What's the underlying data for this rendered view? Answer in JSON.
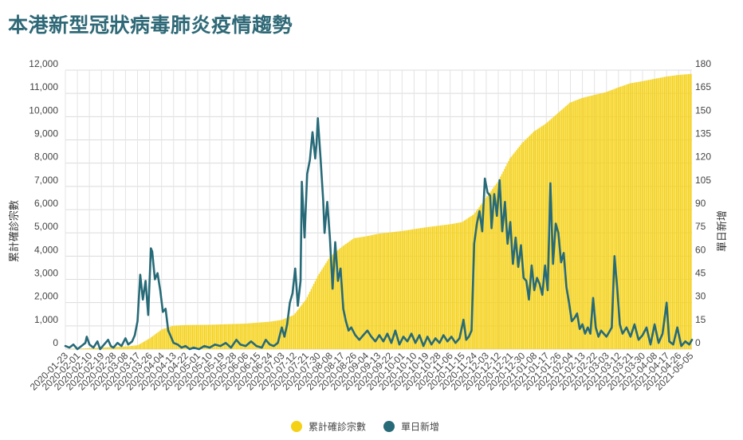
{
  "title": "本港新型冠狀病毒肺炎疫情趨勢",
  "chart_data": {
    "type": "bar+line",
    "title": "本港新型冠狀病毒肺炎疫情趨勢",
    "ylabel_left": "累計確診宗數",
    "ylabel_right": "單日新增",
    "ylim_left": [
      0,
      12000
    ],
    "ylim_right": [
      0,
      180
    ],
    "yticks_left": [
      "0",
      "1,000",
      "2,000",
      "3,000",
      "4,000",
      "5,000",
      "6,000",
      "7,000",
      "8,000",
      "9,000",
      "10,000",
      "11,000",
      "12,000"
    ],
    "yticks_right": [
      "0",
      "15",
      "30",
      "45",
      "60",
      "75",
      "90",
      "105",
      "120",
      "135",
      "150",
      "165",
      "180"
    ],
    "x_start": "2020-01-23",
    "x_end": "2021-05-06",
    "xticks": [
      "2020-01-23",
      "2020-02-01",
      "2020-02-10",
      "2020-02-19",
      "2020-02-28",
      "2020-03-08",
      "2020-03-17",
      "2020-03-26",
      "2020-04-04",
      "2020-04-13",
      "2020-04-22",
      "2020-05-01",
      "2020-05-10",
      "2020-05-19",
      "2020-05-28",
      "2020-06-06",
      "2020-06-15",
      "2020-06-24",
      "2020-07-03",
      "2020-07-12",
      "2020-07-21",
      "2020-07-30",
      "2020-08-08",
      "2020-08-17",
      "2020-08-26",
      "2020-09-04",
      "2020-09-13",
      "2020-09-22",
      "2020-10-01",
      "2020-10-10",
      "2020-10-19",
      "2020-10-28",
      "2020-11-06",
      "2020-11-15",
      "2020-11-24",
      "2020-12-03",
      "2020-12-12",
      "2020-12-21",
      "2020-12-30",
      "2021-01-08",
      "2021-01-17",
      "2021-01-26",
      "2021-02-04",
      "2021-02-13",
      "2021-02-22",
      "2021-03-03",
      "2021-03-12",
      "2021-03-21",
      "2021-03-30",
      "2021-04-08",
      "2021-04-17",
      "2021-04-26",
      "2021-05-05"
    ],
    "series": [
      {
        "name": "累計確診宗數",
        "type": "bar",
        "axis": "left",
        "color": "#f5d116",
        "points": [
          [
            "2020-01-23",
            1
          ],
          [
            "2020-02-10",
            40
          ],
          [
            "2020-02-28",
            95
          ],
          [
            "2020-03-08",
            115
          ],
          [
            "2020-03-17",
            170
          ],
          [
            "2020-03-26",
            470
          ],
          [
            "2020-04-04",
            850
          ],
          [
            "2020-04-13",
            1010
          ],
          [
            "2020-04-22",
            1036
          ],
          [
            "2020-05-10",
            1047
          ],
          [
            "2020-06-06",
            1100
          ],
          [
            "2020-06-24",
            1180
          ],
          [
            "2020-07-03",
            1260
          ],
          [
            "2020-07-12",
            1470
          ],
          [
            "2020-07-21",
            2130
          ],
          [
            "2020-07-30",
            3150
          ],
          [
            "2020-08-08",
            3970
          ],
          [
            "2020-08-17",
            4400
          ],
          [
            "2020-08-26",
            4770
          ],
          [
            "2020-09-04",
            4850
          ],
          [
            "2020-09-13",
            4960
          ],
          [
            "2020-10-01",
            5080
          ],
          [
            "2020-10-19",
            5240
          ],
          [
            "2020-11-06",
            5370
          ],
          [
            "2020-11-15",
            5460
          ],
          [
            "2020-11-24",
            5800
          ],
          [
            "2020-12-03",
            6500
          ],
          [
            "2020-12-12",
            7200
          ],
          [
            "2020-12-21",
            8200
          ],
          [
            "2020-12-30",
            8850
          ],
          [
            "2021-01-08",
            9360
          ],
          [
            "2021-01-17",
            9700
          ],
          [
            "2021-01-26",
            10150
          ],
          [
            "2021-02-04",
            10600
          ],
          [
            "2021-02-13",
            10800
          ],
          [
            "2021-02-22",
            10930
          ],
          [
            "2021-03-03",
            11050
          ],
          [
            "2021-03-12",
            11250
          ],
          [
            "2021-03-21",
            11430
          ],
          [
            "2021-03-30",
            11520
          ],
          [
            "2021-04-08",
            11620
          ],
          [
            "2021-04-17",
            11720
          ],
          [
            "2021-04-26",
            11790
          ],
          [
            "2021-05-06",
            11840
          ]
        ]
      },
      {
        "name": "單日新增",
        "type": "line",
        "axis": "right",
        "color": "#276a78",
        "points": [
          [
            "2020-01-23",
            2
          ],
          [
            "2020-01-26",
            1
          ],
          [
            "2020-01-29",
            3
          ],
          [
            "2020-02-01",
            0
          ],
          [
            "2020-02-04",
            2
          ],
          [
            "2020-02-07",
            4
          ],
          [
            "2020-02-08",
            8
          ],
          [
            "2020-02-10",
            3
          ],
          [
            "2020-02-13",
            1
          ],
          [
            "2020-02-16",
            5
          ],
          [
            "2020-02-18",
            0
          ],
          [
            "2020-02-21",
            3
          ],
          [
            "2020-02-24",
            6
          ],
          [
            "2020-02-26",
            2
          ],
          [
            "2020-02-28",
            1
          ],
          [
            "2020-03-02",
            4
          ],
          [
            "2020-03-05",
            2
          ],
          [
            "2020-03-08",
            7
          ],
          [
            "2020-03-10",
            3
          ],
          [
            "2020-03-13",
            5
          ],
          [
            "2020-03-15",
            9
          ],
          [
            "2020-03-17",
            18
          ],
          [
            "2020-03-19",
            48
          ],
          [
            "2020-03-21",
            32
          ],
          [
            "2020-03-23",
            44
          ],
          [
            "2020-03-25",
            22
          ],
          [
            "2020-03-27",
            65
          ],
          [
            "2020-03-28",
            63
          ],
          [
            "2020-03-30",
            45
          ],
          [
            "2020-04-01",
            49
          ],
          [
            "2020-04-03",
            38
          ],
          [
            "2020-04-05",
            24
          ],
          [
            "2020-04-07",
            26
          ],
          [
            "2020-04-09",
            12
          ],
          [
            "2020-04-11",
            8
          ],
          [
            "2020-04-13",
            4
          ],
          [
            "2020-04-16",
            3
          ],
          [
            "2020-04-19",
            1
          ],
          [
            "2020-04-22",
            2
          ],
          [
            "2020-04-25",
            0
          ],
          [
            "2020-04-28",
            1
          ],
          [
            "2020-05-02",
            0
          ],
          [
            "2020-05-06",
            2
          ],
          [
            "2020-05-10",
            1
          ],
          [
            "2020-05-14",
            3
          ],
          [
            "2020-05-18",
            2
          ],
          [
            "2020-05-22",
            4
          ],
          [
            "2020-05-26",
            1
          ],
          [
            "2020-05-30",
            6
          ],
          [
            "2020-06-02",
            3
          ],
          [
            "2020-06-06",
            2
          ],
          [
            "2020-06-10",
            5
          ],
          [
            "2020-06-14",
            2
          ],
          [
            "2020-06-18",
            1
          ],
          [
            "2020-06-21",
            6
          ],
          [
            "2020-06-24",
            3
          ],
          [
            "2020-06-27",
            2
          ],
          [
            "2020-06-30",
            4
          ],
          [
            "2020-07-03",
            14
          ],
          [
            "2020-07-05",
            8
          ],
          [
            "2020-07-07",
            16
          ],
          [
            "2020-07-09",
            30
          ],
          [
            "2020-07-11",
            36
          ],
          [
            "2020-07-13",
            52
          ],
          [
            "2020-07-15",
            28
          ],
          [
            "2020-07-17",
            44
          ],
          [
            "2020-07-18",
            108
          ],
          [
            "2020-07-20",
            72
          ],
          [
            "2020-07-22",
            113
          ],
          [
            "2020-07-24",
            122
          ],
          [
            "2020-07-26",
            140
          ],
          [
            "2020-07-28",
            123
          ],
          [
            "2020-07-29",
            133
          ],
          [
            "2020-07-30",
            149
          ],
          [
            "2020-08-01",
            123
          ],
          [
            "2020-08-03",
            96
          ],
          [
            "2020-08-04",
            75
          ],
          [
            "2020-08-06",
            95
          ],
          [
            "2020-08-08",
            72
          ],
          [
            "2020-08-10",
            39
          ],
          [
            "2020-08-12",
            69
          ],
          [
            "2020-08-14",
            44
          ],
          [
            "2020-08-16",
            52
          ],
          [
            "2020-08-18",
            26
          ],
          [
            "2020-08-20",
            18
          ],
          [
            "2020-08-22",
            12
          ],
          [
            "2020-08-24",
            14
          ],
          [
            "2020-08-27",
            9
          ],
          [
            "2020-08-30",
            6
          ],
          [
            "2020-09-02",
            9
          ],
          [
            "2020-09-05",
            12
          ],
          [
            "2020-09-08",
            8
          ],
          [
            "2020-09-11",
            5
          ],
          [
            "2020-09-14",
            9
          ],
          [
            "2020-09-17",
            5
          ],
          [
            "2020-09-20",
            10
          ],
          [
            "2020-09-23",
            4
          ],
          [
            "2020-09-26",
            12
          ],
          [
            "2020-09-29",
            3
          ],
          [
            "2020-10-02",
            8
          ],
          [
            "2020-10-05",
            5
          ],
          [
            "2020-10-08",
            10
          ],
          [
            "2020-10-11",
            4
          ],
          [
            "2020-10-14",
            9
          ],
          [
            "2020-10-17",
            2
          ],
          [
            "2020-10-20",
            8
          ],
          [
            "2020-10-23",
            3
          ],
          [
            "2020-10-26",
            7
          ],
          [
            "2020-10-29",
            4
          ],
          [
            "2020-11-01",
            9
          ],
          [
            "2020-11-04",
            5
          ],
          [
            "2020-11-07",
            8
          ],
          [
            "2020-11-10",
            4
          ],
          [
            "2020-11-13",
            7
          ],
          [
            "2020-11-16",
            19
          ],
          [
            "2020-11-18",
            6
          ],
          [
            "2020-11-20",
            8
          ],
          [
            "2020-11-22",
            12
          ],
          [
            "2020-11-24",
            68
          ],
          [
            "2020-11-26",
            81
          ],
          [
            "2020-11-28",
            89
          ],
          [
            "2020-11-30",
            76
          ],
          [
            "2020-12-02",
            110
          ],
          [
            "2020-12-04",
            101
          ],
          [
            "2020-12-06",
            99
          ],
          [
            "2020-12-07",
            78
          ],
          [
            "2020-12-09",
            100
          ],
          [
            "2020-12-11",
            86
          ],
          [
            "2020-12-13",
            109
          ],
          [
            "2020-12-15",
            76
          ],
          [
            "2020-12-17",
            95
          ],
          [
            "2020-12-19",
            68
          ],
          [
            "2020-12-21",
            82
          ],
          [
            "2020-12-23",
            55
          ],
          [
            "2020-12-25",
            72
          ],
          [
            "2020-12-27",
            53
          ],
          [
            "2020-12-29",
            67
          ],
          [
            "2020-12-31",
            46
          ],
          [
            "2021-01-02",
            44
          ],
          [
            "2021-01-04",
            32
          ],
          [
            "2021-01-06",
            54
          ],
          [
            "2021-01-08",
            38
          ],
          [
            "2021-01-10",
            46
          ],
          [
            "2021-01-12",
            42
          ],
          [
            "2021-01-14",
            35
          ],
          [
            "2021-01-16",
            54
          ],
          [
            "2021-01-18",
            38
          ],
          [
            "2021-01-20",
            107
          ],
          [
            "2021-01-22",
            55
          ],
          [
            "2021-01-24",
            81
          ],
          [
            "2021-01-26",
            75
          ],
          [
            "2021-01-28",
            56
          ],
          [
            "2021-01-30",
            62
          ],
          [
            "2021-02-01",
            40
          ],
          [
            "2021-02-03",
            30
          ],
          [
            "2021-02-05",
            18
          ],
          [
            "2021-02-07",
            20
          ],
          [
            "2021-02-09",
            23
          ],
          [
            "2021-02-11",
            13
          ],
          [
            "2021-02-13",
            16
          ],
          [
            "2021-02-15",
            10
          ],
          [
            "2021-02-17",
            14
          ],
          [
            "2021-02-19",
            10
          ],
          [
            "2021-02-21",
            33
          ],
          [
            "2021-02-23",
            14
          ],
          [
            "2021-02-25",
            8
          ],
          [
            "2021-02-27",
            12
          ],
          [
            "2021-03-01",
            10
          ],
          [
            "2021-03-03",
            8
          ],
          [
            "2021-03-05",
            11
          ],
          [
            "2021-03-07",
            14
          ],
          [
            "2021-03-09",
            60
          ],
          [
            "2021-03-11",
            40
          ],
          [
            "2021-03-13",
            16
          ],
          [
            "2021-03-15",
            10
          ],
          [
            "2021-03-18",
            14
          ],
          [
            "2021-03-21",
            8
          ],
          [
            "2021-03-24",
            16
          ],
          [
            "2021-03-27",
            6
          ],
          [
            "2021-03-30",
            9
          ],
          [
            "2021-04-02",
            14
          ],
          [
            "2021-04-05",
            3
          ],
          [
            "2021-04-08",
            16
          ],
          [
            "2021-04-11",
            4
          ],
          [
            "2021-04-14",
            10
          ],
          [
            "2021-04-17",
            30
          ],
          [
            "2021-04-19",
            5
          ],
          [
            "2021-04-22",
            3
          ],
          [
            "2021-04-25",
            14
          ],
          [
            "2021-04-28",
            2
          ],
          [
            "2021-05-01",
            5
          ],
          [
            "2021-05-04",
            3
          ],
          [
            "2021-05-06",
            6
          ]
        ]
      }
    ],
    "legend": "bottom-center",
    "grid": true
  }
}
